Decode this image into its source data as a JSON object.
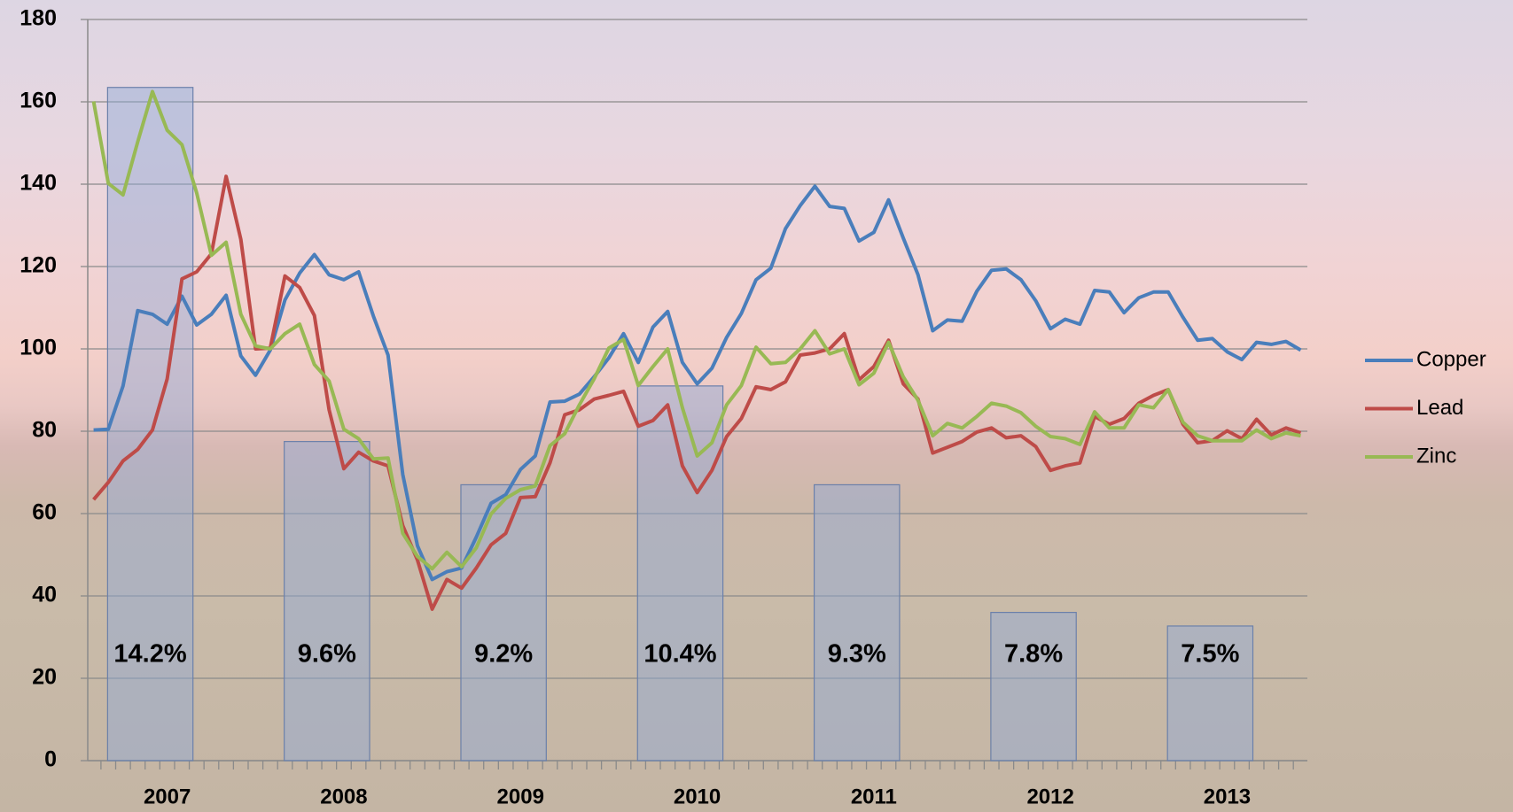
{
  "chart_data": {
    "type": "line",
    "categories": [
      null,
      null,
      null,
      null,
      null,
      "2007",
      null,
      null,
      null,
      null,
      null,
      null,
      null,
      null,
      null,
      null,
      null,
      "2008",
      null,
      null,
      null,
      null,
      null,
      null,
      null,
      null,
      null,
      null,
      null,
      "2009",
      null,
      null,
      null,
      null,
      null,
      null,
      null,
      null,
      null,
      null,
      null,
      "2010",
      null,
      null,
      null,
      null,
      null,
      null,
      null,
      null,
      null,
      null,
      null,
      "2011",
      null,
      null,
      null,
      null,
      null,
      null,
      null,
      null,
      null,
      null,
      null,
      "2012",
      null,
      null,
      null,
      null,
      null,
      null,
      null,
      null,
      null,
      null,
      null,
      "2013",
      null,
      null,
      null,
      null,
      null
    ],
    "series": [
      {
        "name": "Copper",
        "color": "#4a7ebb",
        "values": [
          80.3,
          80.5,
          91,
          109.3,
          108.4,
          106,
          112.8,
          105.8,
          108.4,
          113,
          98.3,
          93.6,
          99.7,
          111.9,
          118.4,
          122.9,
          118,
          116.8,
          118.7,
          108,
          98.5,
          69.5,
          52.2,
          44,
          45.9,
          46.8,
          54.3,
          62.5,
          64.6,
          70.7,
          74,
          87.1,
          87.3,
          89,
          93.2,
          97.8,
          103.7,
          96.7,
          105.3,
          109.1,
          96.7,
          91.5,
          95.3,
          102.8,
          108.6,
          116.8,
          119.6,
          129.2,
          134.8,
          139.5,
          134.6,
          134.1,
          126.2,
          128.3,
          136.2,
          126.9,
          118,
          104.4,
          107,
          106.7,
          114,
          119.1,
          119.4,
          116.8,
          111.7,
          104.9,
          107.2,
          106,
          114.2,
          113.8,
          108.8,
          112.4,
          113.8,
          113.8,
          107.7,
          102.1,
          102.5,
          99.3,
          97.4,
          101.6,
          101.1,
          101.8,
          99.7
        ]
      },
      {
        "name": "Lead",
        "color": "#be4b48",
        "values": [
          63.4,
          67.6,
          72.8,
          75.6,
          80.3,
          92.7,
          117,
          118.7,
          123.1,
          141.9,
          126.6,
          100,
          100.2,
          117.7,
          114.9,
          108.1,
          85.2,
          70.9,
          74.9,
          72.8,
          71.6,
          57.1,
          48.7,
          36.8,
          44,
          41.9,
          46.8,
          52.4,
          55.2,
          63.9,
          64.1,
          72.3,
          84,
          85.2,
          87.8,
          88.7,
          89.7,
          81.2,
          82.6,
          86.4,
          71.6,
          65.1,
          70.5,
          78.7,
          83.1,
          90.8,
          90.1,
          92,
          98.5,
          99,
          100,
          103.7,
          92.5,
          95.7,
          102.1,
          91.5,
          87.8,
          74.7,
          76.1,
          77.5,
          79.8,
          80.8,
          78.4,
          78.9,
          76.3,
          70.5,
          71.6,
          72.3,
          83.6,
          81.7,
          83.1,
          86.8,
          88.7,
          90.1,
          81.7,
          77.2,
          77.7,
          80.1,
          78.2,
          82.9,
          79.1,
          80.8,
          79.6
        ]
      },
      {
        "name": "Zinc",
        "color": "#98b954",
        "values": [
          160.1,
          140.2,
          137.4,
          150.3,
          162.5,
          153.1,
          149.6,
          137.9,
          122.7,
          125.9,
          108.4,
          100.7,
          100,
          103.7,
          106,
          96.2,
          92.2,
          80.5,
          78.2,
          73.3,
          73.5,
          55.2,
          49.6,
          46.6,
          50.6,
          47.1,
          51.7,
          59.9,
          63.7,
          65.8,
          66.7,
          76.5,
          79.4,
          86.4,
          92.7,
          100.2,
          102.3,
          91.1,
          95.7,
          100,
          85.7,
          74,
          77.2,
          86.4,
          91.1,
          100.4,
          96.4,
          96.7,
          100,
          104.4,
          98.8,
          100,
          91.3,
          94.1,
          101.6,
          93.2,
          87.5,
          78.9,
          81.9,
          80.8,
          83.6,
          86.8,
          86.1,
          84.5,
          81.2,
          78.7,
          78.2,
          76.8,
          84.7,
          80.8,
          80.8,
          86.4,
          85.7,
          90.1,
          82.2,
          78.9,
          77.7,
          77.7,
          77.7,
          80.3,
          78.2,
          79.6,
          78.9
        ]
      }
    ],
    "bars": {
      "color": "#8fa8d8",
      "values": [
        163.5,
        77.5,
        67,
        91,
        67,
        36,
        32.7
      ]
    },
    "annotations": [
      "14.2%",
      "9.6%",
      "9.2%",
      "10.4%",
      "9.3%",
      "7.8%",
      "7.5%"
    ],
    "ylim": [
      0,
      180
    ],
    "yticks": [
      0,
      20,
      40,
      60,
      80,
      100,
      120,
      140,
      160,
      180
    ],
    "grid": true,
    "legend": "right"
  }
}
